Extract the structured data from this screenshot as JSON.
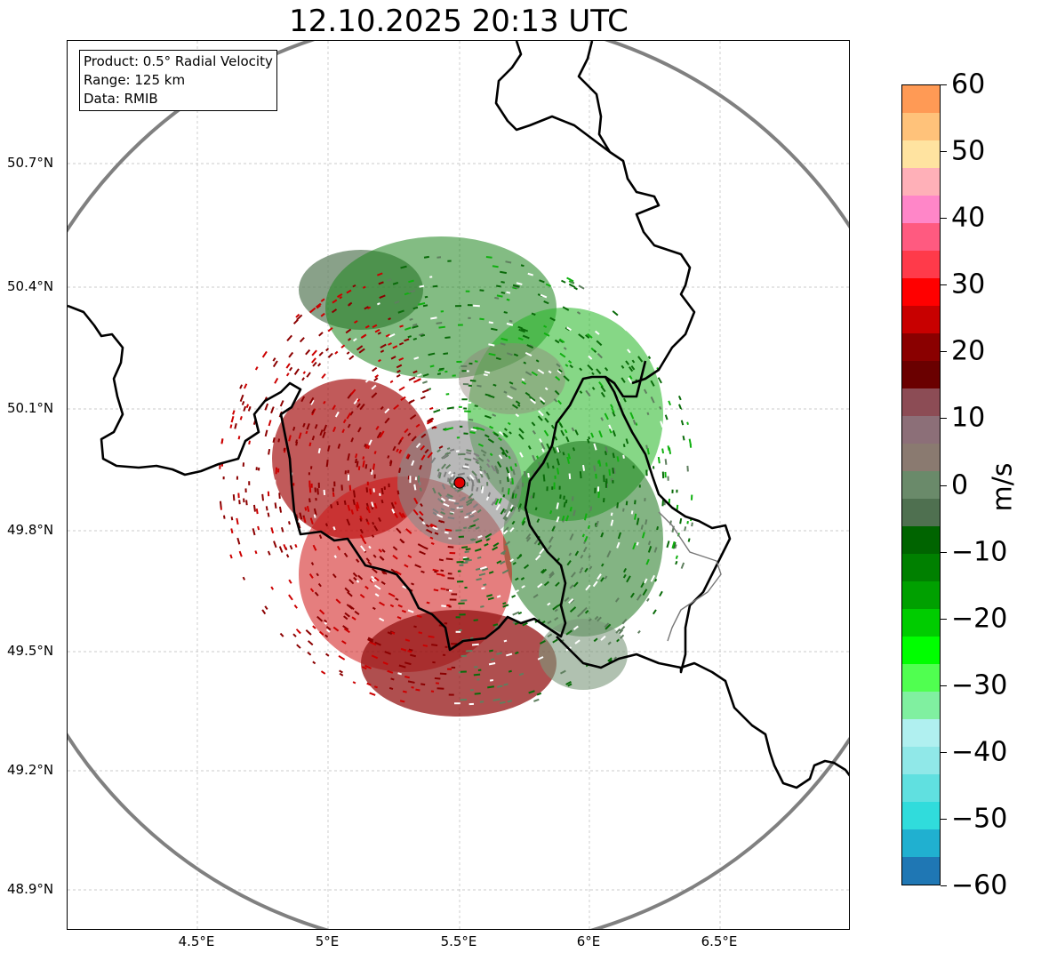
{
  "title": "12.10.2025 20:13 UTC",
  "info": {
    "product": "Product: 0.5° Radial Velocity",
    "range": "Range: 125 km",
    "data": "Data: RMIB"
  },
  "axes": {
    "lat_ticks": [
      "50.7°N",
      "50.4°N",
      "50.1°N",
      "49.8°N",
      "49.5°N",
      "49.2°N",
      "48.9°N"
    ],
    "lon_ticks": [
      "4.5°E",
      "5°E",
      "5.5°E",
      "6°E",
      "6.5°E"
    ]
  },
  "colorbar": {
    "label": "m/s",
    "ticks": [
      "60",
      "50",
      "40",
      "30",
      "20",
      "10",
      "0",
      "−10",
      "−20",
      "−30",
      "−40",
      "−50",
      "−60"
    ],
    "gradient": [
      "#ff9a55",
      "#ffc27a",
      "#ffe3a0",
      "#ffb0b8",
      "#ff86c8",
      "#ff5a80",
      "#ff3a4a",
      "#ff0000",
      "#c80000",
      "#8a0000",
      "#6a0000",
      "#8c4c55",
      "#8c6f78",
      "#8a7a70",
      "#6a8a6a",
      "#4f7050",
      "#006400",
      "#008000",
      "#00a000",
      "#00cc00",
      "#00ff00",
      "#50ff50",
      "#80f0a0",
      "#b0f0f0",
      "#90e8e8",
      "#60e0e0",
      "#30dcdc",
      "#20b0d0",
      "#1f77b4"
    ]
  },
  "radar": {
    "site_label": "radar-site",
    "colors": {
      "red_dark": "#8b0000",
      "red": "#cc0000",
      "green_dark": "#0a6b0a",
      "green": "#10b010",
      "gray_green": "#5f7f5f",
      "gray": "#7f7f7f",
      "site": "#e00000"
    }
  }
}
